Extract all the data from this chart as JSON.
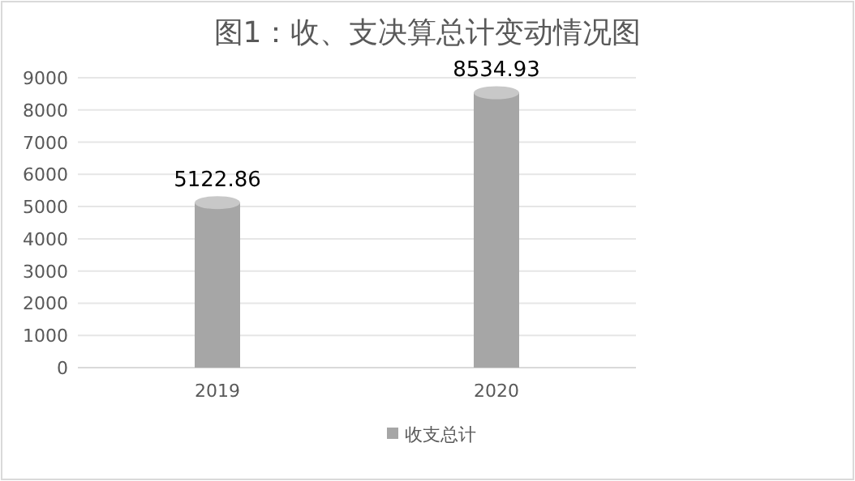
{
  "chart_data": {
    "type": "bar",
    "title": "图1：收、支决算总计变动情况图",
    "categories": [
      "2019",
      "2020"
    ],
    "series": [
      {
        "name": "收支总计",
        "color": "#a6a6a6",
        "values": [
          5122.86,
          8534.93
        ]
      }
    ],
    "ylim": [
      0,
      9000
    ],
    "yticks": [
      0,
      1000,
      2000,
      3000,
      4000,
      5000,
      6000,
      7000,
      8000,
      9000
    ],
    "grid": "y",
    "legend": "bottom",
    "data_labels": true
  }
}
